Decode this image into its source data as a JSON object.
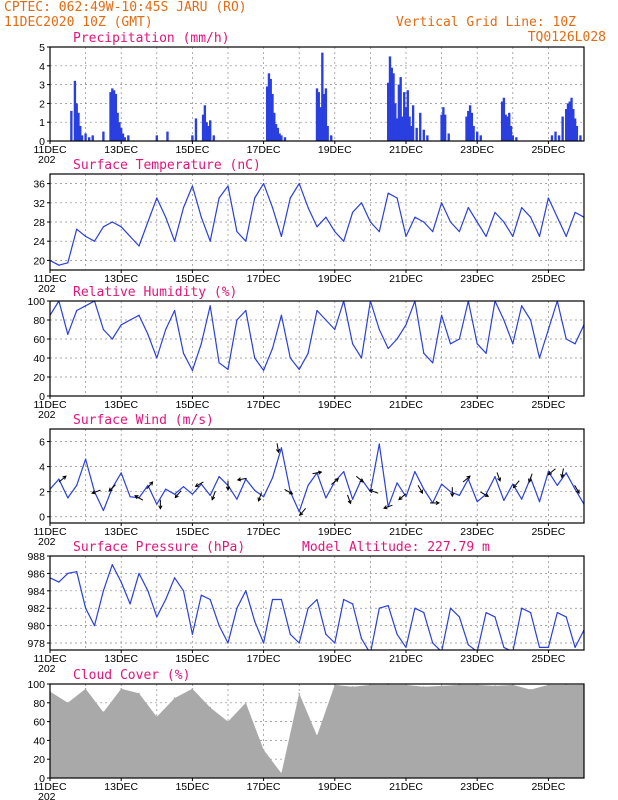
{
  "header": {
    "line1": "CPTEC:  062:49W-10:45S  JARU (RO)",
    "line2": "11DEC2020 10Z (GMT)",
    "grid_note": "Vertical Grid Line: 10Z",
    "code": "TQ0126L028"
  },
  "x_axis": {
    "date_labels": [
      "11DEC",
      "13DEC",
      "15DEC",
      "17DEC",
      "19DEC",
      "21DEC",
      "23DEC",
      "25DEC"
    ],
    "days": 15,
    "year_fragment": "202"
  },
  "colors": {
    "line": "#2a3fe0",
    "bars": "#2a3fe0",
    "cloud": "#a9a9a9",
    "title": "#e2157c",
    "header": "#e36b12",
    "arrows": "#000000"
  },
  "panels": [
    {
      "key": "precip",
      "title": "Precipitation (mm/h)",
      "yticks": [
        "0",
        "1",
        "2",
        "3",
        "4",
        "5"
      ],
      "ylim": [
        0,
        5
      ]
    },
    {
      "key": "temp",
      "title": "Surface Temperature (nC)",
      "yticks": [
        "20",
        "24",
        "28",
        "32",
        "36"
      ],
      "ylim": [
        18,
        38
      ]
    },
    {
      "key": "rh",
      "title": "Relative Humidity (%)",
      "yticks": [
        "0",
        "20",
        "40",
        "60",
        "80",
        "100"
      ],
      "ylim": [
        0,
        100
      ]
    },
    {
      "key": "wind",
      "title": "Surface Wind (m/s)",
      "yticks": [
        "0",
        "2",
        "4",
        "6"
      ],
      "ylim": [
        -0.5,
        7
      ]
    },
    {
      "key": "pres",
      "title": "Surface Pressure (hPa)",
      "extra": "Model Altitude: 227.79 m",
      "yticks": [
        "978",
        "980",
        "982",
        "984",
        "986",
        "988"
      ],
      "ylim": [
        977.2,
        988
      ]
    },
    {
      "key": "cloud",
      "title": "Cloud Cover (%)",
      "yticks": [
        "0",
        "20",
        "40",
        "60",
        "80",
        "100"
      ],
      "ylim": [
        0,
        100
      ]
    }
  ],
  "chart_data": [
    {
      "type": "bar",
      "title": "Precipitation (mm/h)",
      "x_unit": "days since 11DEC 10Z",
      "x": [
        0.6,
        0.7,
        0.75,
        0.8,
        0.85,
        0.9,
        1.0,
        1.1,
        1.2,
        1.5,
        1.7,
        1.75,
        1.8,
        1.85,
        1.9,
        1.95,
        2.0,
        2.05,
        2.1,
        2.2,
        3.0,
        3.3,
        4.0,
        4.1,
        4.3,
        4.35,
        4.4,
        4.45,
        4.5,
        4.6,
        6.1,
        6.15,
        6.2,
        6.25,
        6.3,
        6.35,
        6.4,
        6.45,
        6.5,
        6.6,
        7.5,
        7.55,
        7.6,
        7.65,
        7.7,
        7.75,
        7.8,
        7.9,
        9.5,
        9.55,
        9.6,
        9.65,
        9.7,
        9.75,
        9.8,
        9.85,
        9.9,
        9.95,
        10.0,
        10.05,
        10.1,
        10.15,
        10.2,
        10.3,
        10.4,
        10.5,
        10.6,
        11.0,
        11.05,
        11.1,
        11.2,
        11.7,
        11.75,
        11.8,
        11.85,
        11.9,
        12.0,
        12.1,
        12.7,
        12.75,
        12.8,
        12.85,
        12.9,
        12.95,
        13.0,
        13.1,
        14.1,
        14.2,
        14.3,
        14.4,
        14.5,
        14.55,
        14.6,
        14.65,
        14.7,
        14.75,
        14.8,
        14.9
      ],
      "values": [
        1.6,
        3.2,
        2.0,
        1.5,
        0.8,
        0.3,
        0.4,
        0.2,
        0.3,
        0.5,
        2.6,
        2.8,
        2.7,
        2.5,
        1.5,
        1.0,
        0.7,
        0.4,
        0.2,
        0.3,
        0.3,
        0.5,
        0.3,
        1.2,
        1.4,
        1.9,
        1.0,
        0.8,
        1.1,
        0.3,
        2.9,
        3.6,
        3.3,
        2.5,
        1.5,
        0.9,
        0.7,
        0.4,
        0.3,
        0.2,
        2.8,
        2.6,
        1.8,
        4.7,
        2.5,
        2.8,
        0.8,
        0.3,
        3.1,
        4.5,
        3.9,
        3.6,
        2.0,
        1.2,
        3.0,
        3.4,
        1.3,
        2.6,
        1.8,
        2.7,
        1.3,
        0.8,
        1.9,
        0.7,
        1.5,
        0.6,
        0.3,
        1.4,
        1.8,
        1.4,
        0.4,
        1.3,
        1.6,
        1.9,
        1.5,
        0.8,
        0.5,
        0.3,
        2.1,
        2.3,
        1.4,
        1.3,
        1.5,
        0.8,
        0.3,
        0.2,
        0.3,
        0.5,
        0.3,
        1.3,
        1.7,
        2.0,
        2.1,
        2.3,
        1.7,
        1.2,
        0.8,
        0.3
      ],
      "ylim": [
        0,
        5
      ]
    },
    {
      "type": "line",
      "title": "Surface Temperature (nC)",
      "x": [
        0,
        0.25,
        0.5,
        0.75,
        1.0,
        1.25,
        1.5,
        1.75,
        2.0,
        2.25,
        2.5,
        2.75,
        3.0,
        3.25,
        3.5,
        3.75,
        4.0,
        4.25,
        4.5,
        4.75,
        5.0,
        5.25,
        5.5,
        5.75,
        6.0,
        6.25,
        6.5,
        6.75,
        7.0,
        7.25,
        7.5,
        7.75,
        8.0,
        8.25,
        8.5,
        8.75,
        9.0,
        9.25,
        9.5,
        9.75,
        10.0,
        10.25,
        10.5,
        10.75,
        11.0,
        11.25,
        11.5,
        11.75,
        12.0,
        12.25,
        12.5,
        12.75,
        13.0,
        13.25,
        13.5,
        13.75,
        14.0,
        14.25,
        14.5,
        14.75,
        15.0
      ],
      "values": [
        20,
        19,
        19.5,
        26.5,
        25,
        24,
        27,
        28,
        27,
        25,
        23,
        28,
        33,
        29,
        24,
        31,
        35.5,
        29,
        24,
        33,
        35.5,
        26,
        24,
        33,
        36,
        31,
        25,
        33,
        36,
        31,
        27,
        29,
        26,
        24,
        30,
        32,
        28,
        26,
        34,
        33,
        25,
        29,
        28,
        26,
        32,
        28,
        26,
        31,
        28,
        25,
        30,
        28,
        25,
        31,
        29,
        25,
        33,
        29,
        25,
        30,
        29
      ],
      "ylim": [
        18,
        38
      ]
    },
    {
      "type": "line",
      "title": "Relative Humidity (%)",
      "x": [
        0,
        0.25,
        0.5,
        0.75,
        1.0,
        1.25,
        1.5,
        1.75,
        2.0,
        2.25,
        2.5,
        2.75,
        3.0,
        3.25,
        3.5,
        3.75,
        4.0,
        4.25,
        4.5,
        4.75,
        5.0,
        5.25,
        5.5,
        5.75,
        6.0,
        6.25,
        6.5,
        6.75,
        7.0,
        7.25,
        7.5,
        7.75,
        8.0,
        8.25,
        8.5,
        8.75,
        9.0,
        9.25,
        9.5,
        9.75,
        10.0,
        10.25,
        10.5,
        10.75,
        11.0,
        11.25,
        11.5,
        11.75,
        12.0,
        12.25,
        12.5,
        12.75,
        13.0,
        13.25,
        13.5,
        13.75,
        14.0,
        14.25,
        14.5,
        14.75,
        15.0
      ],
      "values": [
        85,
        100,
        65,
        90,
        95,
        100,
        70,
        60,
        75,
        80,
        85,
        65,
        40,
        70,
        90,
        45,
        27,
        55,
        95,
        35,
        28,
        80,
        90,
        40,
        27,
        50,
        85,
        40,
        28,
        45,
        90,
        80,
        70,
        100,
        55,
        40,
        100,
        70,
        50,
        60,
        75,
        100,
        45,
        35,
        85,
        55,
        60,
        100,
        55,
        45,
        100,
        80,
        55,
        95,
        80,
        40,
        70,
        100,
        60,
        55,
        75
      ],
      "ylim": [
        0,
        100
      ]
    },
    {
      "type": "line",
      "title": "Surface Wind (m/s)",
      "x": [
        0,
        0.25,
        0.5,
        0.75,
        1.0,
        1.25,
        1.5,
        1.75,
        2.0,
        2.25,
        2.5,
        2.75,
        3.0,
        3.25,
        3.5,
        3.75,
        4.0,
        4.25,
        4.5,
        4.75,
        5.0,
        5.25,
        5.5,
        5.75,
        6.0,
        6.25,
        6.5,
        6.75,
        7.0,
        7.25,
        7.5,
        7.75,
        8.0,
        8.25,
        8.5,
        8.75,
        9.0,
        9.25,
        9.5,
        9.75,
        10.0,
        10.25,
        10.5,
        10.75,
        11.0,
        11.25,
        11.5,
        11.75,
        12.0,
        12.25,
        12.5,
        12.75,
        13.0,
        13.25,
        13.5,
        13.75,
        14.0,
        14.25,
        14.5,
        14.75,
        15.0
      ],
      "values": [
        2.2,
        3.0,
        1.5,
        2.5,
        4.6,
        2.0,
        0.5,
        2.3,
        3.5,
        1.6,
        1.5,
        2.5,
        1.0,
        2.2,
        1.8,
        2.4,
        1.8,
        2.6,
        1.7,
        3.2,
        2.5,
        1.4,
        3.0,
        2.1,
        1.6,
        3.1,
        5.5,
        2.0,
        0.4,
        2.5,
        3.5,
        1.5,
        2.8,
        3.6,
        1.4,
        3.0,
        2.0,
        5.8,
        0.8,
        2.7,
        1.6,
        3.6,
        2.2,
        1.1,
        2.6,
        2.0,
        1.7,
        3.0,
        1.2,
        1.8,
        3.2,
        1.3,
        2.6,
        1.4,
        3.1,
        1.2,
        3.6,
        2.5,
        3.5,
        2.2,
        1.0
      ],
      "wind_arrows": [
        {
          "x": 0.35,
          "dir": 40
        },
        {
          "x": 1.3,
          "dir": 200
        },
        {
          "x": 1.75,
          "dir": 225
        },
        {
          "x": 2.5,
          "dir": 150
        },
        {
          "x": 2.8,
          "dir": 50
        },
        {
          "x": 3.1,
          "dir": 270
        },
        {
          "x": 3.6,
          "dir": 230
        },
        {
          "x": 4.2,
          "dir": 210
        },
        {
          "x": 4.6,
          "dir": 250
        },
        {
          "x": 5.0,
          "dir": 270
        },
        {
          "x": 5.4,
          "dir": 190
        },
        {
          "x": 5.9,
          "dir": 250
        },
        {
          "x": 6.4,
          "dir": 280
        },
        {
          "x": 6.7,
          "dir": 330
        },
        {
          "x": 7.1,
          "dir": 230
        },
        {
          "x": 7.5,
          "dir": 10
        },
        {
          "x": 8.0,
          "dir": 40
        },
        {
          "x": 8.4,
          "dir": 290
        },
        {
          "x": 8.7,
          "dir": 320
        },
        {
          "x": 9.1,
          "dir": 160
        },
        {
          "x": 9.5,
          "dir": 200
        },
        {
          "x": 9.9,
          "dir": 220
        },
        {
          "x": 10.4,
          "dir": 300
        },
        {
          "x": 10.8,
          "dir": 0
        },
        {
          "x": 11.3,
          "dir": 270
        },
        {
          "x": 11.7,
          "dir": 40
        },
        {
          "x": 12.2,
          "dir": 330
        },
        {
          "x": 12.6,
          "dir": 290
        },
        {
          "x": 13.1,
          "dir": 230
        },
        {
          "x": 13.5,
          "dir": 250
        },
        {
          "x": 14.1,
          "dir": 220
        },
        {
          "x": 14.4,
          "dir": 260
        },
        {
          "x": 14.8,
          "dir": 300
        }
      ],
      "ylim": [
        -0.5,
        7
      ]
    },
    {
      "type": "line",
      "title": "Surface Pressure (hPa)",
      "x": [
        0,
        0.25,
        0.5,
        0.75,
        1.0,
        1.25,
        1.5,
        1.75,
        2.0,
        2.25,
        2.5,
        2.75,
        3.0,
        3.25,
        3.5,
        3.75,
        4.0,
        4.25,
        4.5,
        4.75,
        5.0,
        5.25,
        5.5,
        5.75,
        6.0,
        6.25,
        6.5,
        6.75,
        7.0,
        7.25,
        7.5,
        7.75,
        8.0,
        8.25,
        8.5,
        8.75,
        9.0,
        9.25,
        9.5,
        9.75,
        10.0,
        10.25,
        10.5,
        10.75,
        11.0,
        11.25,
        11.5,
        11.75,
        12.0,
        12.25,
        12.5,
        12.75,
        13.0,
        13.25,
        13.5,
        13.75,
        14.0,
        14.25,
        14.5,
        14.75,
        15.0
      ],
      "values": [
        985.5,
        985,
        986,
        986.2,
        982,
        980,
        984,
        987,
        985,
        982.5,
        986,
        984,
        981,
        983,
        985.5,
        984,
        979,
        983.5,
        983,
        980,
        978,
        982,
        984,
        980.5,
        978,
        983,
        983,
        979,
        978,
        982,
        983,
        979,
        978,
        983,
        982.5,
        978.5,
        976.8,
        982,
        982.3,
        979,
        977.5,
        982,
        981.5,
        978,
        977,
        982,
        981,
        977.8,
        977,
        981.5,
        981,
        977.5,
        977,
        982,
        981.5,
        977.5,
        977.5,
        981.5,
        981,
        977.5,
        979.5
      ],
      "ylim": [
        977.2,
        988
      ]
    },
    {
      "type": "bar",
      "title": "Cloud Cover (%)",
      "x": [
        0,
        0.5,
        1.0,
        1.5,
        2.0,
        2.5,
        3.0,
        3.5,
        4.0,
        4.5,
        5.0,
        5.5,
        6.0,
        6.5,
        7.0,
        7.5,
        8.0,
        8.5,
        9.0,
        9.5,
        10.0,
        10.5,
        11.0,
        11.5,
        12.0,
        12.5,
        13.0,
        13.5,
        14.0,
        14.5,
        15.0
      ],
      "values": [
        92,
        80,
        95,
        70,
        95,
        90,
        65,
        85,
        95,
        75,
        60,
        80,
        30,
        5,
        90,
        45,
        99,
        97,
        99,
        99,
        99,
        97,
        98,
        99,
        99,
        98,
        99,
        94,
        99,
        99,
        99
      ],
      "ylim": [
        0,
        100
      ]
    }
  ]
}
